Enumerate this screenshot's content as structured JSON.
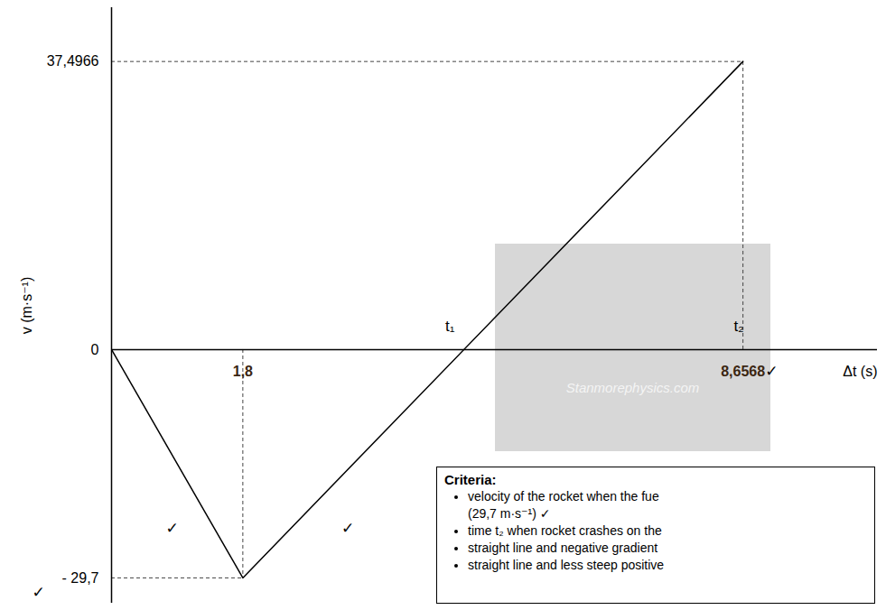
{
  "chart_data": {
    "type": "line",
    "x_label": "Δt (s)",
    "y_label": "v (m·s⁻¹)",
    "x": [
      0,
      1.8,
      8.6568
    ],
    "values": [
      0,
      -29.7,
      37.4966
    ],
    "color": "#000000",
    "xlim": [
      0,
      10.5
    ],
    "ylim": [
      -33,
      44.5
    ],
    "xticks": [
      {
        "value": 1.8,
        "label": "1,8"
      },
      {
        "value": 8.6568,
        "label": "8,6568"
      }
    ],
    "yticks": [
      {
        "value": -29.7,
        "label": "- 29,7"
      },
      0,
      {
        "value": 37.4966,
        "label": "37,4966"
      }
    ],
    "grid": false,
    "annotations": [
      {
        "text": "t₁",
        "x": 4.64,
        "y": 3
      },
      {
        "text": "t₂",
        "x": 8.6,
        "y": 3
      },
      {
        "text": "✓",
        "x": 9.05,
        "y": -2.8
      },
      {
        "text": "✓",
        "x": 0.83,
        "y": -23.3
      },
      {
        "text": "✓",
        "x": 3.24,
        "y": -23.3
      },
      {
        "text": "✓",
        "x": -1.0,
        "y": -31.6
      }
    ],
    "watermark": "Stanmorephysics.com",
    "criteria": {
      "title": "Criteria:",
      "items": [
        [
          "velocity of the rocket when the fue",
          "(29,7 m·s⁻¹) ✓"
        ],
        [
          "time t₂ when rocket crashes on the"
        ],
        [
          "straight line and negative gradient"
        ],
        [
          "straight line and less steep positive"
        ]
      ]
    }
  }
}
